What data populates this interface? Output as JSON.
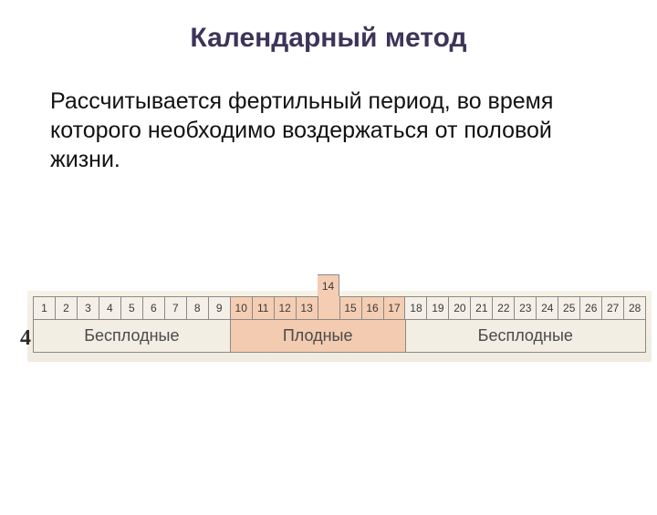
{
  "title": "Календарный метод",
  "body": "Рассчитывается  фертильный период, во время которого необходимо воздержаться от половой жизни.",
  "rowLabel": "4",
  "calendar": {
    "total_days": 28,
    "ovulation_day": 14,
    "fertile_start": 10,
    "fertile_end": 17,
    "segments": [
      {
        "label": "Бесплодные",
        "span": 9,
        "kind": "infertile"
      },
      {
        "label": "Плодные",
        "span": 8,
        "kind": "fertile"
      },
      {
        "label": "Бесплодные",
        "span": 11,
        "kind": "infertile"
      }
    ],
    "colors": {
      "infertile_bg": "#f4f0e7",
      "fertile_bg": "#f5cdb2",
      "label_bg": "#f2eee4",
      "label_fertile_bg": "#f3cbb1",
      "border": "#8a8a88",
      "day_text": "#3a3a3a",
      "seg_text": "#4a4a4a"
    },
    "day_font_size": 12,
    "seg_font_size": 18
  },
  "title_color": "#3d3458",
  "title_font_size": 30,
  "body_font_size": 25
}
